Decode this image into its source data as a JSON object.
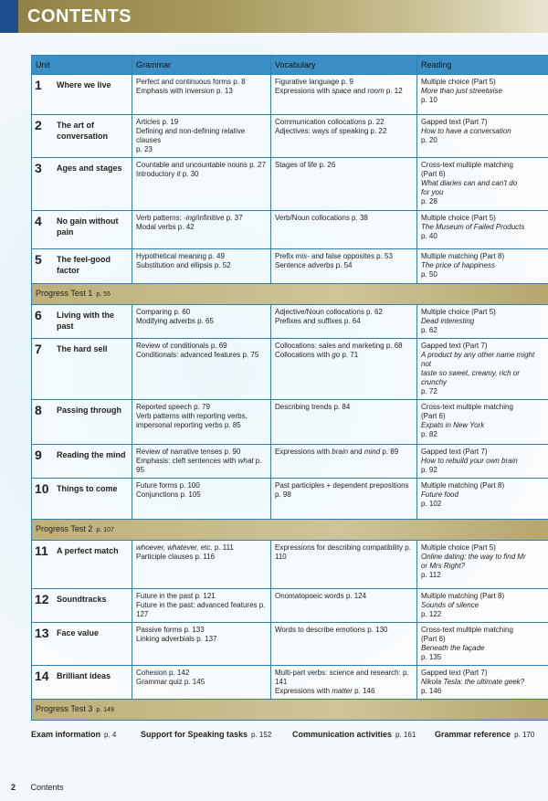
{
  "header": {
    "title": "CONTENTS"
  },
  "colors": {
    "title_bar": "#a89a5c",
    "header_row": "#3b8fc5",
    "progress_row": "#c2b37a",
    "accent_square": "#1f4e8c"
  },
  "columns": [
    "Unit",
    "Grammar",
    "Vocabulary",
    "Reading"
  ],
  "rows": [
    {
      "num": "1",
      "name": "Where we live",
      "h": 44,
      "grammar": [
        [
          {
            "t": "Perfect and continuous forms p. 8"
          }
        ],
        [
          {
            "t": "Emphasis with inversion p. 13"
          }
        ]
      ],
      "vocab": [
        [
          {
            "t": "Figurative language p. 9"
          }
        ],
        [
          {
            "t": "Expressions with "
          },
          {
            "t": "space",
            "i": 1
          },
          {
            "t": " and "
          },
          {
            "t": "room",
            "i": 1
          },
          {
            "t": " p. 12"
          }
        ]
      ],
      "reading": [
        [
          {
            "t": "Multiple choice (Part 5)"
          }
        ],
        [
          {
            "t": "More than just streetwise",
            "i": 1
          }
        ],
        [
          {
            "t": "p. 10"
          }
        ]
      ]
    },
    {
      "num": "2",
      "name": "The art of conversation",
      "h": 39,
      "grammar": [
        [
          {
            "t": "Articles p. 19"
          }
        ],
        [
          {
            "t": "Defining and non-defining relative clauses"
          }
        ],
        [
          {
            "t": "p. 23"
          }
        ]
      ],
      "vocab": [
        [
          {
            "t": "Communication collocations p. 22"
          }
        ],
        [
          {
            "t": "Adjectives: ways of speaking p. 22"
          }
        ]
      ],
      "reading": [
        [
          {
            "t": "Gapped text (Part 7)"
          }
        ],
        [
          {
            "t": "How to have a conversation",
            "i": 1
          }
        ],
        [
          {
            "t": "p. 20"
          }
        ]
      ]
    },
    {
      "num": "3",
      "name": "Ages and stages",
      "h": 58,
      "grammar": [
        [
          {
            "t": "Countable and uncountable nouns p. 27"
          }
        ],
        [
          {
            "t": "Introductory "
          },
          {
            "t": "it",
            "i": 1
          },
          {
            "t": " p. 30"
          }
        ]
      ],
      "vocab": [
        [
          {
            "t": "Stages of life p. 26"
          }
        ]
      ],
      "reading": [
        [
          {
            "t": "Cross-text multiple matching"
          }
        ],
        [
          {
            "t": "(Part 6)"
          }
        ],
        [
          {
            "t": "What diaries can and can't do",
            "i": 1
          }
        ],
        [
          {
            "t": "for you",
            "i": 1
          }
        ],
        [
          {
            "t": "p. 28"
          }
        ]
      ]
    },
    {
      "num": "4",
      "name": "No gain without pain",
      "h": 42,
      "grammar": [
        [
          {
            "t": "Verb patterns: "
          },
          {
            "t": "-ing",
            "i": 1
          },
          {
            "t": "/infinitive p. 37"
          }
        ],
        [
          {
            "t": "Modal verbs p. 42"
          }
        ]
      ],
      "vocab": [
        [
          {
            "t": "Verb/Noun collocations p. 38"
          }
        ]
      ],
      "reading": [
        [
          {
            "t": "Multiple choice (Part 5)"
          }
        ],
        [
          {
            "t": "The Museum of Failed Products",
            "i": 1
          }
        ],
        [
          {
            "t": "p. 40"
          }
        ]
      ]
    },
    {
      "num": "5",
      "name": "The feel-good factor",
      "h": 38,
      "grammar": [
        [
          {
            "t": "Hypothetical meaning p. 49"
          }
        ],
        [
          {
            "t": "Substitution and ellipsis p. 52"
          }
        ]
      ],
      "vocab": [
        [
          {
            "t": "Prefix "
          },
          {
            "t": "mis-",
            "i": 1
          },
          {
            "t": " and false opposites p. 53"
          }
        ],
        [
          {
            "t": "Sentence adverbs p. 54"
          }
        ]
      ],
      "reading": [
        [
          {
            "t": "Multiple matching (Part 8)"
          }
        ],
        [
          {
            "t": "The price of happiness",
            "i": 1
          }
        ],
        [
          {
            "t": "p. 50"
          }
        ]
      ]
    },
    {
      "progress": "Progress Test 1",
      "page": "p. 55"
    },
    {
      "num": "6",
      "name": "Living with the past",
      "h": 36,
      "grammar": [
        [
          {
            "t": "Comparing p. 60"
          }
        ],
        [
          {
            "t": "Modifying adverbs p. 65"
          }
        ]
      ],
      "vocab": [
        [
          {
            "t": "Adjective/Noun collocations p. 62"
          }
        ],
        [
          {
            "t": "Prefixes and suffixes p. 64"
          }
        ]
      ],
      "reading": [
        [
          {
            "t": "Multiple choice (Part 5)"
          }
        ],
        [
          {
            "t": "Dead interesting",
            "i": 1
          }
        ],
        [
          {
            "t": "p. 62"
          }
        ]
      ]
    },
    {
      "num": "7",
      "name": "The hard sell",
      "h": 47,
      "grammar": [
        [
          {
            "t": "Review of conditionals p. 69"
          }
        ],
        [
          {
            "t": "Conditionals: advanced features p. 75"
          }
        ]
      ],
      "vocab": [
        [
          {
            "t": "Collocations: sales and marketing p. 68"
          }
        ],
        [
          {
            "t": "Collocations with "
          },
          {
            "t": "go",
            "i": 1
          },
          {
            "t": " p. 71"
          }
        ]
      ],
      "reading": [
        [
          {
            "t": "Gapped text (Part 7)"
          }
        ],
        [
          {
            "t": "A product by any other name might not",
            "i": 1
          }
        ],
        [
          {
            "t": "taste so sweet, creamy, rich or crunchy",
            "i": 1
          }
        ],
        [
          {
            "t": "p. 72"
          }
        ]
      ]
    },
    {
      "num": "8",
      "name": "Passing through",
      "h": 49,
      "grammar": [
        [
          {
            "t": "Reported speech p. 79"
          }
        ],
        [
          {
            "t": "Verb patterns with reporting verbs,"
          }
        ],
        [
          {
            "t": "impersonal reporting verbs p. 85"
          }
        ]
      ],
      "vocab": [
        [
          {
            "t": "Describing trends p. 84"
          }
        ]
      ],
      "reading": [
        [
          {
            "t": "Cross-text multiple matching"
          }
        ],
        [
          {
            "t": "(Part 6)"
          }
        ],
        [
          {
            "t": "Expats in New York",
            "i": 1
          }
        ],
        [
          {
            "t": "p. 82"
          }
        ]
      ]
    },
    {
      "num": "9",
      "name": "Reading the mind",
      "h": 35,
      "grammar": [
        [
          {
            "t": "Review of narrative tenses p. 90"
          }
        ],
        [
          {
            "t": "Emphasis: cleft sentences with "
          },
          {
            "t": "what",
            "i": 1
          },
          {
            "t": " p. 95"
          }
        ]
      ],
      "vocab": [
        [
          {
            "t": "Expressions with "
          },
          {
            "t": "brain",
            "i": 1
          },
          {
            "t": " and "
          },
          {
            "t": "mind",
            "i": 1
          },
          {
            "t": " p. 89"
          }
        ]
      ],
      "reading": [
        [
          {
            "t": "Gapped text (Part 7)"
          }
        ],
        [
          {
            "t": "How to rebuild your own brain",
            "i": 1
          }
        ],
        [
          {
            "t": "p. 92"
          }
        ]
      ]
    },
    {
      "num": "10",
      "name": "Things to come",
      "h": 45,
      "grammar": [
        [
          {
            "t": "Future forms p. 100"
          }
        ],
        [
          {
            "t": "Conjunctions p. 105"
          }
        ]
      ],
      "vocab": [
        [
          {
            "t": "Past participles + dependent prepositions p. 98"
          }
        ]
      ],
      "reading": [
        [
          {
            "t": "Multiple matching (Part 8)"
          }
        ],
        [
          {
            "t": "Future food",
            "i": 1
          }
        ],
        [
          {
            "t": "p. 102"
          }
        ]
      ]
    },
    {
      "progress": "Progress Test 2",
      "page": "p. 107"
    },
    {
      "num": "11",
      "name": "A perfect match",
      "h": 53,
      "grammar": [
        [
          {
            "t": "whoever, whatever,",
            "i": 1
          },
          {
            "t": " etc. p. 111"
          }
        ],
        [
          {
            "t": "Participle clauses p. 116"
          }
        ]
      ],
      "vocab": [
        [
          {
            "t": "Expressions for describing compatibility p. 110"
          }
        ]
      ],
      "reading": [
        [
          {
            "t": "Multiple choice (Part 5)"
          }
        ],
        [
          {
            "t": "Online dating: the way to find Mr",
            "i": 1
          }
        ],
        [
          {
            "t": "or Mrs Right?",
            "i": 1
          }
        ],
        [
          {
            "t": "p. 112"
          }
        ]
      ]
    },
    {
      "num": "12",
      "name": "Soundtracks",
      "h": 30,
      "grammar": [
        [
          {
            "t": "Future in the past p. 121"
          }
        ],
        [
          {
            "t": "Future in the past: advanced features p. 127"
          }
        ]
      ],
      "vocab": [
        [
          {
            "t": "Onomatopoeic words p. 124"
          }
        ]
      ],
      "reading": [
        [
          {
            "t": "Multiple matching (Part 8)"
          }
        ],
        [
          {
            "t": "Sounds of silence",
            "i": 1
          }
        ],
        [
          {
            "t": "p. 122"
          }
        ]
      ]
    },
    {
      "num": "13",
      "name": "Face value",
      "h": 46,
      "grammar": [
        [
          {
            "t": "Passive forms p. 133"
          }
        ],
        [
          {
            "t": "Linking adverbials p. 137"
          }
        ]
      ],
      "vocab": [
        [
          {
            "t": "Words to describe emotions p. 130"
          }
        ]
      ],
      "reading": [
        [
          {
            "t": "Cross-text multiple matching"
          }
        ],
        [
          {
            "t": "(Part 6)"
          }
        ],
        [
          {
            "t": "Beneath the façade",
            "i": 1
          }
        ],
        [
          {
            "t": "p. 135"
          }
        ]
      ]
    },
    {
      "num": "14",
      "name": "Brilliant ideas",
      "h": 34,
      "grammar": [
        [
          {
            "t": "Cohesion p. 142"
          }
        ],
        [
          {
            "t": "Grammar quiz p. 145"
          }
        ]
      ],
      "vocab": [
        [
          {
            "t": "Multi-part verbs: science and research: p. 141"
          }
        ],
        [
          {
            "t": "Expressions with "
          },
          {
            "t": "matter",
            "i": 1
          },
          {
            "t": " p. 146"
          }
        ]
      ],
      "reading": [
        [
          {
            "t": "Gapped text (Part 7)"
          }
        ],
        [
          {
            "t": "Nikola Tesla: the ultimate geek?",
            "i": 1
          }
        ],
        [
          {
            "t": "p. 146"
          }
        ]
      ]
    },
    {
      "progress": "Progress Test 3",
      "page": "p. 149"
    }
  ],
  "footer_links": [
    {
      "label": "Exam information",
      "page": "p. 4"
    },
    {
      "label": "Support for Speaking tasks",
      "page": "p. 152"
    },
    {
      "label": "Communication activities",
      "page": "p. 161"
    },
    {
      "label": "Grammar reference",
      "page": "p. 170"
    }
  ],
  "page_footer": {
    "number": "2",
    "label": "Contents"
  }
}
